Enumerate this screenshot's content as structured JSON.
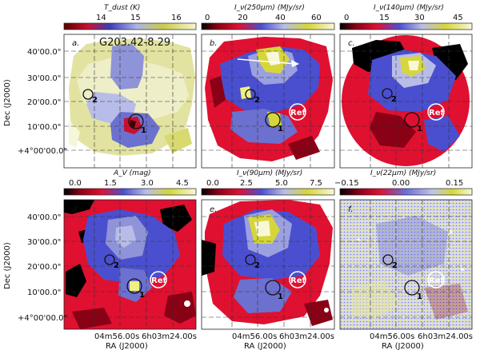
{
  "figure": {
    "object_name": "G203.42-8.29",
    "x_axis_label": "RA (J2000)",
    "y_axis_label": "Dec (J2000)",
    "x_ticks": [
      "04m56.00s",
      "6h03m24.00s"
    ],
    "y_ticks": [
      "40'00.0\"",
      "30'00.0\"",
      "20'00.0\"",
      "10'00.0\"",
      "+4°00'00.0\""
    ],
    "reference_label": "Ref",
    "source_labels": [
      "1",
      "2"
    ],
    "colors": {
      "low": "#c8102e",
      "mid_blue": "#4a4fd0",
      "high": "#f0f000",
      "pale": "#f3f3dc",
      "ref_circle": "#ffffff",
      "source_circle": "#111111"
    },
    "panels": [
      {
        "id": "a",
        "tag": "a.",
        "colorbar_title": "T_dust (K)",
        "colorbar_ticks": [
          "14",
          "15",
          "16"
        ],
        "colormap": "tdust",
        "show_arrow": false,
        "show_ref": false
      },
      {
        "id": "b",
        "tag": "b.",
        "colorbar_title": "I_ν(250μm) (MJy/sr)",
        "colorbar_ticks": [
          "0",
          "20",
          "40",
          "60"
        ],
        "colormap": "intensity",
        "show_arrow": true,
        "show_ref": true
      },
      {
        "id": "c",
        "tag": "c.",
        "colorbar_title": "I_ν(140μm) (MJy/sr)",
        "colorbar_ticks": [
          "0",
          "15",
          "30",
          "45"
        ],
        "colormap": "intensity",
        "show_arrow": false,
        "show_ref": true
      },
      {
        "id": "d",
        "tag": "d.",
        "colorbar_title": "A_V (mag)",
        "colorbar_ticks": [
          "0.0",
          "1.5",
          "3.0",
          "4.5"
        ],
        "colormap": "intensity",
        "show_arrow": false,
        "show_ref": true
      },
      {
        "id": "e",
        "tag": "e.",
        "colorbar_title": "I_ν(90μm) (MJy/sr)",
        "colorbar_ticks": [
          "0.0",
          "2.5",
          "5.0",
          "7.5"
        ],
        "colormap": "intensity",
        "show_arrow": false,
        "show_ref": true
      },
      {
        "id": "f",
        "tag": "f.",
        "colorbar_title": "I_ν(22μm) (MJy/sr)",
        "colorbar_ticks": [
          "−0.15",
          "0.00",
          "0.15"
        ],
        "colormap": "noise",
        "show_arrow": false,
        "show_ref": true
      }
    ]
  }
}
